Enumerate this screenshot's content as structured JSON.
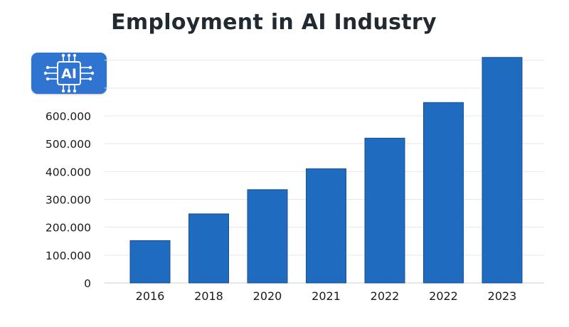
{
  "logo": {
    "text": "AI"
  },
  "chart_data": {
    "type": "bar",
    "title": "Employment in AI Industry",
    "xlabel": "",
    "ylabel": "",
    "categories": [
      "2016",
      "2018",
      "2020",
      "2021",
      "2022",
      "2022",
      "2023"
    ],
    "values": [
      152000,
      248000,
      335000,
      410000,
      520000,
      648000,
      810000
    ],
    "ylim": [
      0,
      810000
    ],
    "yticks": [
      0,
      100000,
      200000,
      300000,
      400000,
      500000,
      600000
    ],
    "ytick_labels": [
      "0",
      "100.000",
      "200.000",
      "300.000",
      "400.000",
      "500.000",
      "600.000"
    ],
    "grid": true,
    "bar_color": "#1f6bbf",
    "bar_edge_color": "#184f8f"
  }
}
